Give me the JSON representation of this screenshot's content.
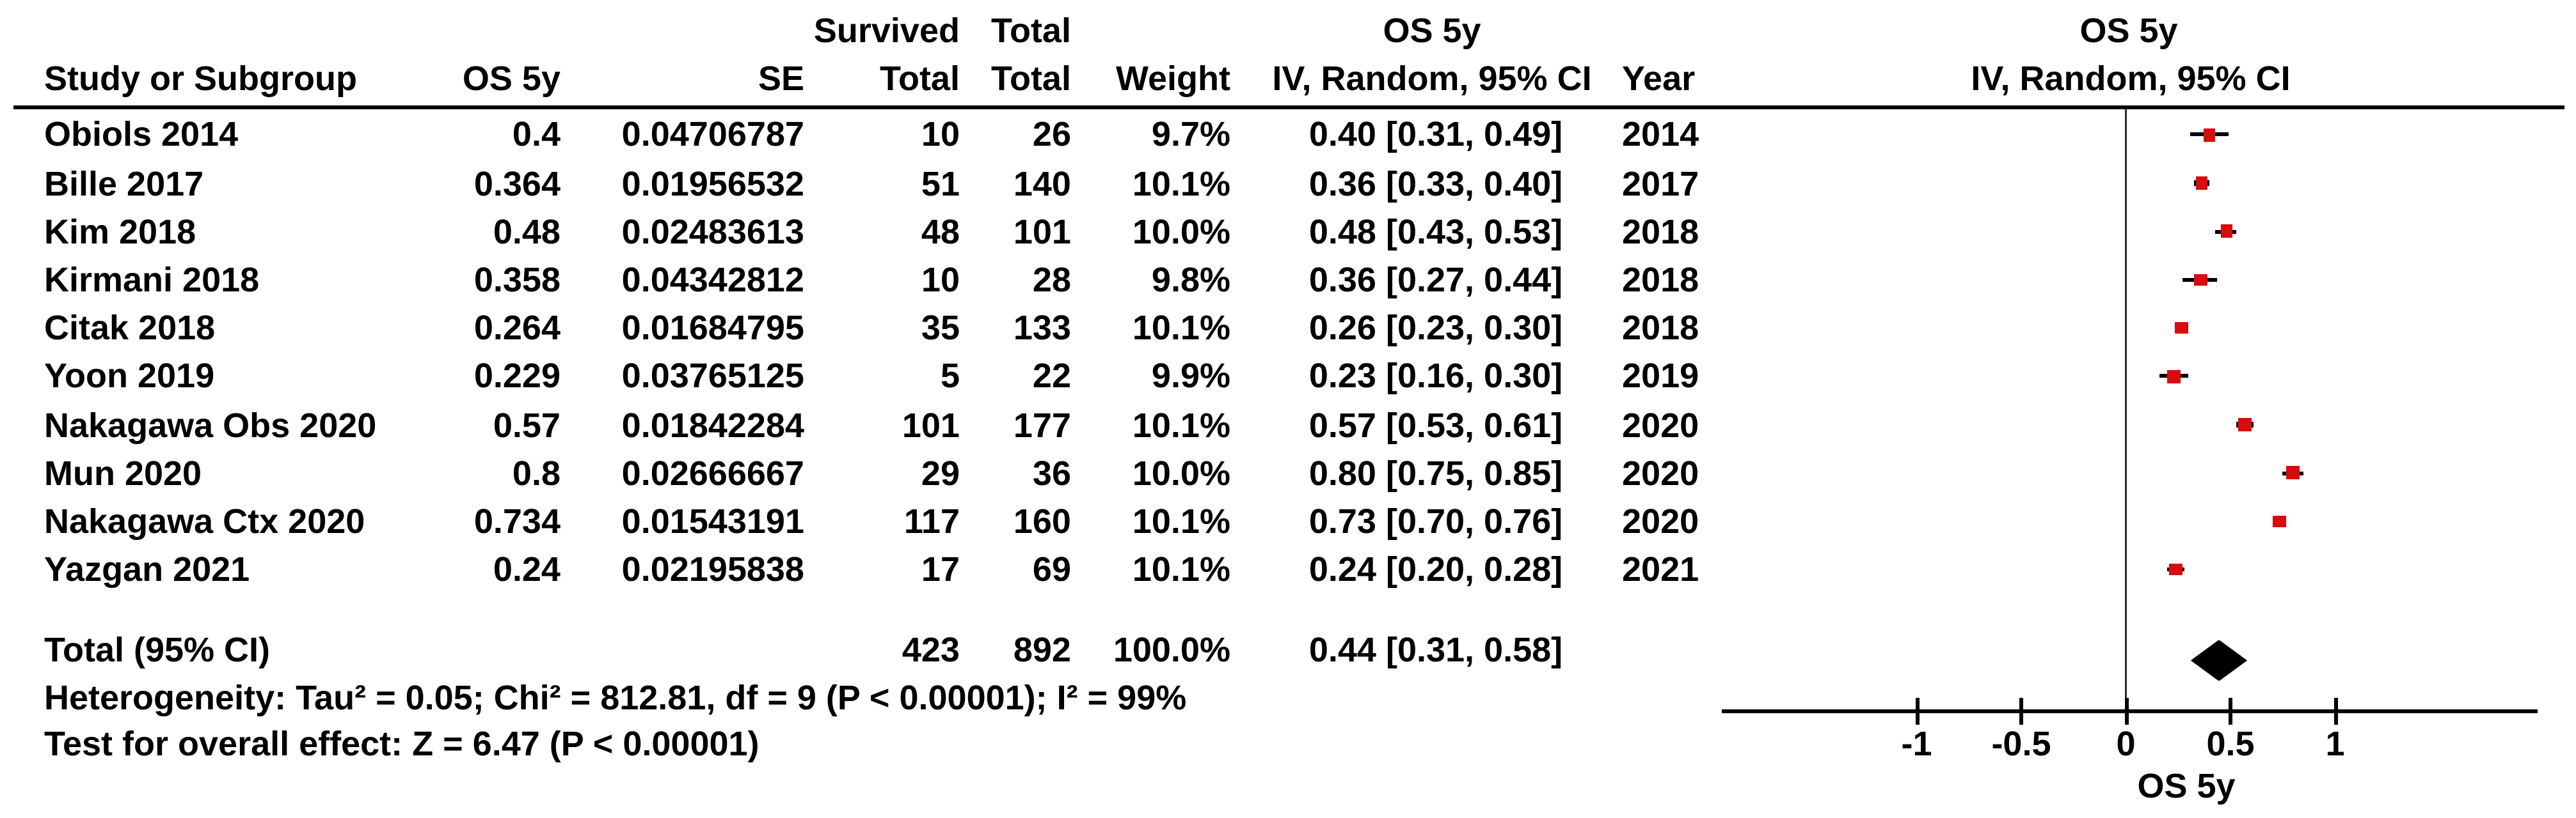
{
  "header": {
    "line1": {
      "survived": "Survived",
      "total": "Total",
      "os5y_ci": "OS 5y",
      "plot_os5y": "OS 5y"
    },
    "line2": {
      "study": "Study or Subgroup",
      "os5y": "OS 5y",
      "se": "SE",
      "total4": "Total",
      "total5": "Total",
      "weight": "Weight",
      "ci": "IV, Random, 95% CI",
      "year": "Year",
      "plot_ci": "IV, Random, 95% CI"
    }
  },
  "chart_data": {
    "type": "scatter",
    "subtype": "forest-plot",
    "title": "OS 5y — IV, Random, 95% CI",
    "legend_position": "none",
    "grid": false,
    "x_axis": {
      "label": "OS 5y",
      "ticks": [
        -1,
        -0.5,
        0,
        0.5,
        1
      ],
      "tick_labels": [
        "-1",
        "-0.5",
        "0",
        "0.5",
        "1"
      ],
      "drawn_range": [
        -1.93,
        1.97
      ],
      "zero_line": true
    },
    "studies": [
      {
        "name": "Obiols 2014",
        "os5y_text": "0.4",
        "se_text": "0.04706787",
        "survived": "10",
        "total": "26",
        "weight_text": "9.7%",
        "ci_text": "0.40 [0.31, 0.49]",
        "year": "2014",
        "estimate": 0.4,
        "ci_low": 0.31,
        "ci_high": 0.49
      },
      {
        "name": "Bille 2017",
        "os5y_text": "0.364",
        "se_text": "0.01956532",
        "survived": "51",
        "total": "140",
        "weight_text": "10.1%",
        "ci_text": "0.36 [0.33, 0.40]",
        "year": "2017",
        "estimate": 0.364,
        "ci_low": 0.33,
        "ci_high": 0.4
      },
      {
        "name": "Kim 2018",
        "os5y_text": "0.48",
        "se_text": "0.02483613",
        "survived": "48",
        "total": "101",
        "weight_text": "10.0%",
        "ci_text": "0.48 [0.43, 0.53]",
        "year": "2018",
        "estimate": 0.48,
        "ci_low": 0.43,
        "ci_high": 0.53
      },
      {
        "name": "Kirmani 2018",
        "os5y_text": "0.358",
        "se_text": "0.04342812",
        "survived": "10",
        "total": "28",
        "weight_text": "9.8%",
        "ci_text": "0.36 [0.27, 0.44]",
        "year": "2018",
        "estimate": 0.358,
        "ci_low": 0.27,
        "ci_high": 0.44
      },
      {
        "name": "Citak 2018",
        "os5y_text": "0.264",
        "se_text": "0.01684795",
        "survived": "35",
        "total": "133",
        "weight_text": "10.1%",
        "ci_text": "0.26 [0.23, 0.30]",
        "year": "2018",
        "estimate": 0.264,
        "ci_low": 0.23,
        "ci_high": 0.3
      },
      {
        "name": "Yoon 2019",
        "os5y_text": "0.229",
        "se_text": "0.03765125",
        "survived": "5",
        "total": "22",
        "weight_text": "9.9%",
        "ci_text": "0.23 [0.16, 0.30]",
        "year": "2019",
        "estimate": 0.229,
        "ci_low": 0.16,
        "ci_high": 0.3
      },
      {
        "name": "Nakagawa Obs 2020",
        "os5y_text": "0.57",
        "se_text": "0.01842284",
        "survived": "101",
        "total": "177",
        "weight_text": "10.1%",
        "ci_text": "0.57 [0.53, 0.61]",
        "year": "2020",
        "estimate": 0.57,
        "ci_low": 0.53,
        "ci_high": 0.61
      },
      {
        "name": "Mun 2020",
        "os5y_text": "0.8",
        "se_text": "0.02666667",
        "survived": "29",
        "total": "36",
        "weight_text": "10.0%",
        "ci_text": "0.80 [0.75, 0.85]",
        "year": "2020",
        "estimate": 0.8,
        "ci_low": 0.75,
        "ci_high": 0.85
      },
      {
        "name": "Nakagawa Ctx 2020",
        "os5y_text": "0.734",
        "se_text": "0.01543191",
        "survived": "117",
        "total": "160",
        "weight_text": "10.1%",
        "ci_text": "0.73 [0.70, 0.76]",
        "year": "2020",
        "estimate": 0.734,
        "ci_low": 0.7,
        "ci_high": 0.76
      },
      {
        "name": "Yazgan 2021",
        "os5y_text": "0.24",
        "se_text": "0.02195838",
        "survived": "17",
        "total": "69",
        "weight_text": "10.1%",
        "ci_text": "0.24 [0.20, 0.28]",
        "year": "2021",
        "estimate": 0.24,
        "ci_low": 0.2,
        "ci_high": 0.28
      }
    ],
    "total_row": {
      "label": "Total (95% CI)",
      "survived": "423",
      "total": "892",
      "weight_text": "100.0%",
      "ci_text": "0.44 [0.31, 0.58]",
      "estimate": 0.44,
      "ci_low": 0.31,
      "ci_high": 0.58
    },
    "heterogeneity": {
      "text": "Heterogeneity: Tau² = 0.05; Chi² = 812.81, df = 9 (P < 0.00001); I² = 99%",
      "tau2": 0.05,
      "chi2": 812.81,
      "df": 9,
      "p": "< 0.00001",
      "i2_pct": 99
    },
    "overall_effect_test": {
      "text": "Test for overall effect: Z = 6.47 (P < 0.00001)",
      "z": 6.47,
      "p": "< 0.00001"
    },
    "axis_label": "OS 5y"
  },
  "colors": {
    "marker_red": "#d60d0d",
    "diamond_black": "#000000",
    "text": "#000000",
    "line": "#000000"
  }
}
